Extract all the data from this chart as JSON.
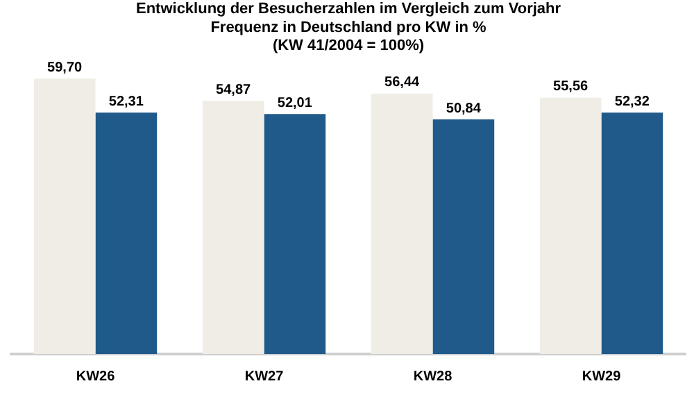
{
  "chart_data": {
    "type": "bar",
    "title": "Entwicklung der Besucherzahlen im Vergleich zum Vorjahr\nFrequenz in Deutschland pro KW in %\n(KW 41/2004 = 100%)",
    "categories": [
      "KW26",
      "KW27",
      "KW28",
      "KW29"
    ],
    "series": [
      {
        "color": "#f0ede7",
        "values": [
          59.7,
          54.87,
          56.44,
          55.56
        ],
        "value_labels": [
          "59,70",
          "54,87",
          "56,44",
          "55,56"
        ]
      },
      {
        "color": "#1f5a8a",
        "values": [
          52.31,
          52.01,
          50.84,
          52.32
        ],
        "value_labels": [
          "52,31",
          "52,01",
          "50,84",
          "52,32"
        ]
      }
    ],
    "tick_labels": "x",
    "grid": false,
    "legend": false
  }
}
